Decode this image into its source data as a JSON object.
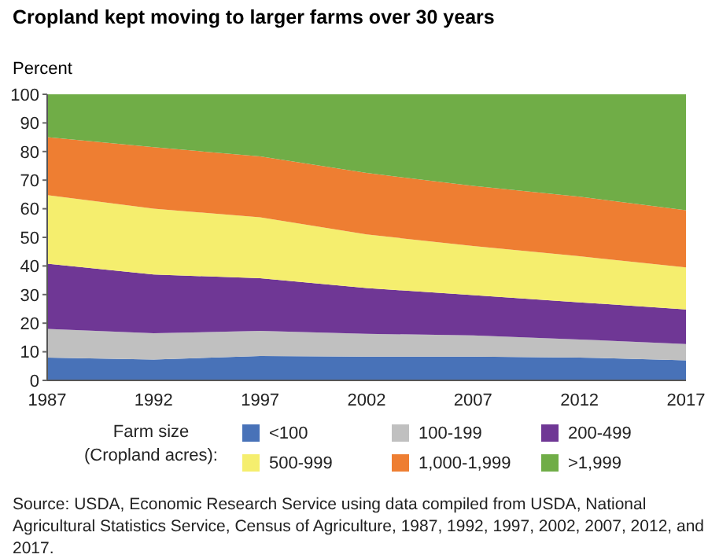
{
  "chart_data": {
    "type": "area",
    "stacked": true,
    "title": "Cropland kept moving to larger farms over 30 years",
    "ylabel": "Percent",
    "legend_title": "Farm size\n(Cropland acres):",
    "x": [
      1987,
      1992,
      1997,
      2002,
      2007,
      2012,
      2017
    ],
    "series": [
      {
        "name": "<100",
        "color": "#4872b8",
        "values": [
          8,
          7.3,
          8.5,
          8.3,
          8.3,
          8,
          7
        ]
      },
      {
        "name": "100-199",
        "color": "#c0c0c0",
        "values": [
          10,
          9.2,
          8.8,
          8,
          7.4,
          6.3,
          5.7
        ]
      },
      {
        "name": "200-499",
        "color": "#6f3795",
        "values": [
          22.8,
          20.5,
          18.4,
          16,
          14.1,
          13,
          12.1
        ]
      },
      {
        "name": "500-999",
        "color": "#f5ee6e",
        "values": [
          24,
          23,
          21.3,
          18.7,
          17.2,
          16.1,
          14.7
        ]
      },
      {
        "name": "1,000-1,999",
        "color": "#ee7e32",
        "values": [
          20.2,
          21.5,
          21.3,
          21.5,
          21,
          20.8,
          20
        ]
      },
      {
        "name": ">1,999",
        "color": "#70ad47",
        "values": [
          15,
          18.5,
          21.7,
          27.5,
          32,
          35.8,
          40.5
        ]
      }
    ],
    "xlim": [
      1987,
      2017
    ],
    "xticks": [
      1987,
      1992,
      1997,
      2002,
      2007,
      2012,
      2017
    ],
    "ylim": [
      0,
      100
    ],
    "yticks": [
      0,
      10,
      20,
      30,
      40,
      50,
      60,
      70,
      80,
      90,
      100
    ],
    "grid": false,
    "legend": "bottom",
    "annotations": [
      "Source: USDA, Economic Research Service using data compiled from USDA, National Agricultural Statistics Service, Census of Agriculture, 1987, 1992, 1997, 2002, 2007, 2012, and 2017."
    ]
  }
}
